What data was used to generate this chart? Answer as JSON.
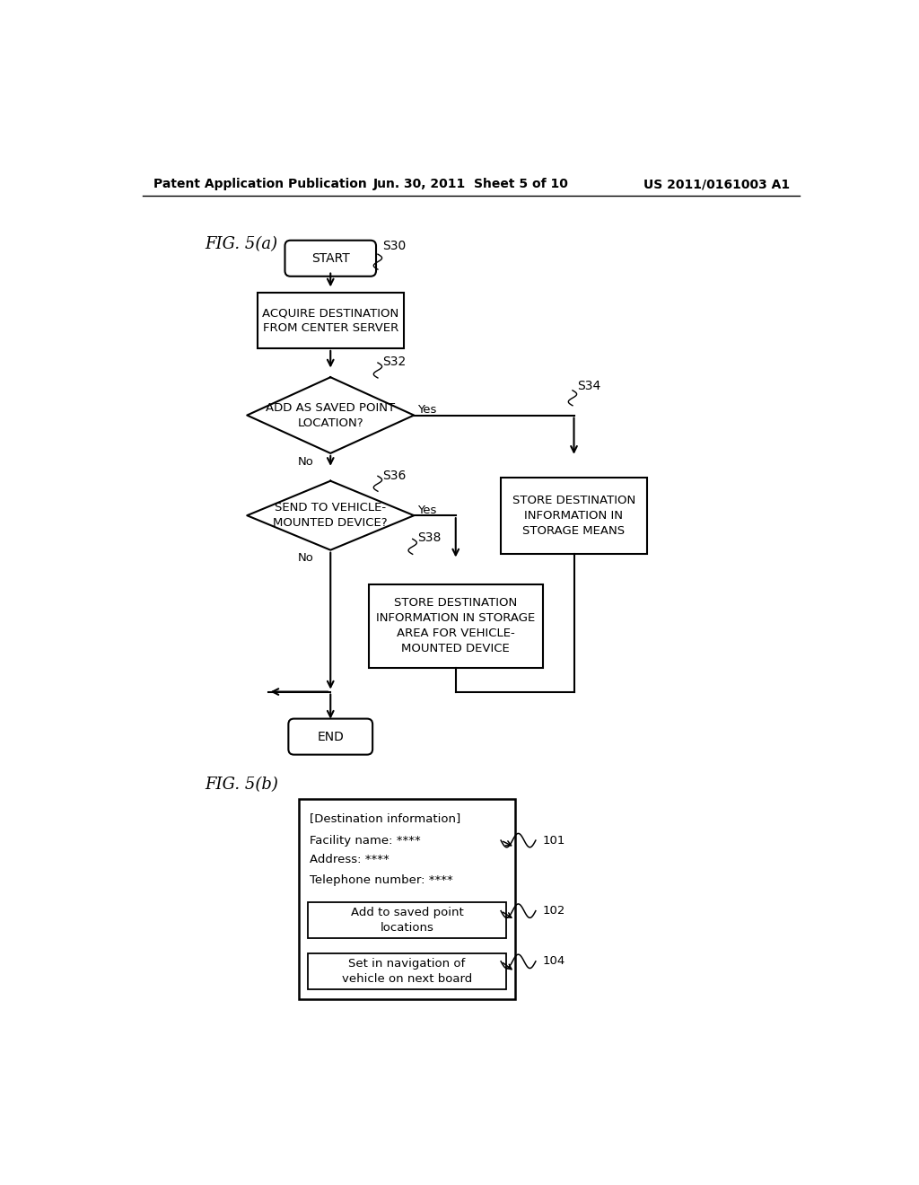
{
  "bg_color": "#ffffff",
  "header_left": "Patent Application Publication",
  "header_mid": "Jun. 30, 2011  Sheet 5 of 10",
  "header_right": "US 2011/0161003 A1",
  "fig_a_label": "FIG. 5(a)",
  "fig_b_label": "FIG. 5(b)",
  "flowchart": {
    "start_text": "START",
    "s30_label": "S30",
    "box1_text": "ACQUIRE DESTINATION\nFROM CENTER SERVER",
    "s32_label": "S32",
    "diamond1_text": "ADD AS SAVED POINT\nLOCATION?",
    "yes1": "Yes",
    "no1": "No",
    "s34_label": "S34",
    "box2_text": "STORE DESTINATION\nINFORMATION IN\nSTORAGE MEANS",
    "s36_label": "S36",
    "diamond2_text": "SEND TO VEHICLE-\nMOUNTED DEVICE?",
    "yes2": "Yes",
    "no2": "No",
    "s38_label": "S38",
    "box3_text": "STORE DESTINATION\nINFORMATION IN STORAGE\nAREA FOR VEHICLE-\nMOUNTED DEVICE",
    "end_text": "END"
  },
  "ui_box": {
    "title": "[Destination information]",
    "line1": "Facility name: ****",
    "line2": "Address: ****",
    "line3": "Telephone number: ****",
    "btn1": "Add to saved point\nlocations",
    "btn2": "Set in navigation of\nvehicle on next board",
    "label101": "101",
    "label102": "102",
    "label104": "104"
  }
}
